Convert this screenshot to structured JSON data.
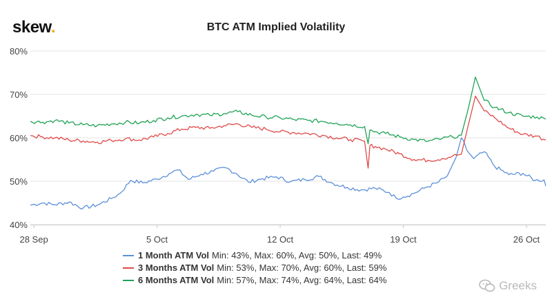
{
  "brand": {
    "name": "skew",
    "dot": "."
  },
  "watermark": {
    "text": "Greeks"
  },
  "chart_data": {
    "type": "line",
    "title": "BTC ATM Implied Volatility",
    "xlabel": "",
    "ylabel": "",
    "ylim": [
      40,
      80
    ],
    "yticks": [
      40,
      50,
      60,
      70,
      80
    ],
    "ytick_labels": [
      "40%",
      "50%",
      "60%",
      "70%",
      "80%"
    ],
    "xlim": [
      27.8,
      57.1
    ],
    "xticks": [
      28,
      35,
      42,
      49,
      56
    ],
    "xtick_labels": [
      "28 Sep",
      "5 Oct",
      "12 Oct",
      "19 Oct",
      "26 Oct"
    ],
    "grid": true,
    "legend_position": "bottom",
    "series": [
      {
        "name": "1 Month ATM Vol",
        "stats": "Min: 43%, Max: 60%, Avg: 50%, Last: 49%",
        "color": "#5b8fd9",
        "x": [
          27.8,
          28.5,
          29.2,
          30.0,
          30.8,
          31.6,
          32.4,
          32.9,
          33.5,
          34.2,
          35.0,
          35.7,
          36.2,
          36.8,
          37.5,
          38.2,
          38.9,
          39.5,
          40.2,
          41.0,
          41.8,
          42.6,
          43.4,
          44.2,
          45.0,
          45.8,
          46.6,
          47.4,
          48.2,
          48.6,
          49.0,
          49.6,
          50.3,
          51.0,
          51.5,
          52.0,
          52.3,
          52.6,
          53.0,
          53.6,
          54.2,
          55.0,
          55.8,
          56.5,
          57.0,
          57.1
        ],
        "values": [
          44.5,
          45.0,
          44.6,
          45.2,
          43.8,
          44.5,
          46.0,
          47.2,
          50.2,
          49.6,
          50.5,
          51.8,
          52.6,
          50.4,
          51.6,
          52.3,
          53.1,
          51.8,
          49.8,
          50.6,
          51.0,
          49.9,
          50.4,
          51.1,
          49.5,
          48.6,
          48.0,
          48.4,
          47.4,
          46.1,
          46.4,
          47.2,
          48.6,
          49.8,
          51.2,
          55.5,
          60.0,
          57.2,
          55.2,
          56.8,
          53.4,
          51.5,
          51.8,
          50.2,
          50.3,
          48.9
        ]
      },
      {
        "name": "3 Months ATM Vol",
        "stats": "Min: 53%, Max: 70%, Avg: 60%, Last: 59%",
        "color": "#e04848",
        "x": [
          27.8,
          28.5,
          29.2,
          30.0,
          30.8,
          31.6,
          32.4,
          33.2,
          34.0,
          34.8,
          35.6,
          36.4,
          37.2,
          38.0,
          38.8,
          39.6,
          40.4,
          41.2,
          42.0,
          42.8,
          43.6,
          44.4,
          45.2,
          46.0,
          46.8,
          47.0,
          47.1,
          47.4,
          48.0,
          48.8,
          49.6,
          50.4,
          51.2,
          51.8,
          52.3,
          52.7,
          53.1,
          53.6,
          54.2,
          55.0,
          55.8,
          56.6,
          57.1
        ],
        "values": [
          60.5,
          60.2,
          60.0,
          59.5,
          59.3,
          59.0,
          59.4,
          59.8,
          59.5,
          60.2,
          61.0,
          62.0,
          62.4,
          62.2,
          62.8,
          63.2,
          62.4,
          62.0,
          61.4,
          61.2,
          61.0,
          60.6,
          60.0,
          59.6,
          59.2,
          53.0,
          58.2,
          58.0,
          57.4,
          56.3,
          55.0,
          54.8,
          55.2,
          55.8,
          56.2,
          63.0,
          69.6,
          66.2,
          64.6,
          62.2,
          60.8,
          60.4,
          59.5
        ]
      },
      {
        "name": "6 Months ATM Vol",
        "stats": "Min: 57%, Max: 74%, Avg: 64%, Last: 64%",
        "color": "#1fa255",
        "x": [
          27.8,
          28.5,
          29.2,
          30.0,
          30.8,
          31.6,
          32.4,
          33.2,
          34.0,
          34.8,
          35.6,
          36.4,
          37.2,
          38.0,
          38.8,
          39.6,
          40.4,
          41.2,
          42.0,
          42.8,
          43.6,
          44.4,
          45.2,
          46.0,
          46.8,
          47.0,
          47.1,
          47.4,
          48.0,
          48.8,
          49.6,
          50.4,
          51.2,
          51.8,
          52.3,
          52.7,
          53.1,
          53.6,
          54.2,
          55.0,
          55.8,
          56.6,
          57.1
        ],
        "values": [
          63.8,
          63.6,
          64.0,
          63.4,
          63.0,
          62.8,
          63.2,
          63.6,
          63.4,
          64.0,
          64.6,
          65.0,
          65.4,
          65.2,
          65.6,
          66.0,
          65.2,
          64.8,
          64.6,
          64.2,
          64.0,
          63.8,
          63.4,
          63.0,
          62.6,
          58.6,
          61.8,
          61.4,
          61.0,
          60.2,
          59.6,
          59.2,
          59.8,
          60.2,
          60.6,
          66.8,
          74.0,
          68.6,
          67.0,
          65.8,
          65.0,
          64.8,
          64.3
        ]
      }
    ]
  }
}
